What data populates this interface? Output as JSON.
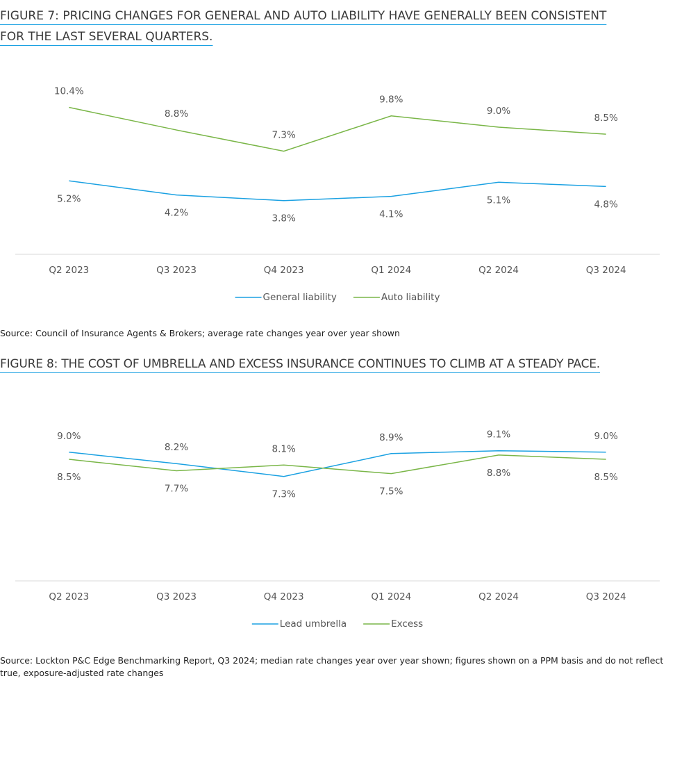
{
  "chart_data": [
    {
      "type": "line",
      "title": "FIGURE 7: PRICING CHANGES FOR GENERAL AND AUTO LIABILITY HAVE GENERALLY BEEN CONSISTENT FOR THE LAST SEVERAL QUARTERS.",
      "categories": [
        "Q2 2023",
        "Q3 2023",
        "Q4 2023",
        "Q1 2024",
        "Q2 2024",
        "Q3 2024"
      ],
      "series": [
        {
          "name": "General liability",
          "color": "#1ba1e2",
          "values": [
            5.2,
            4.2,
            3.8,
            4.1,
            5.1,
            4.8
          ],
          "value_labels": [
            "5.2%",
            "4.2%",
            "3.8%",
            "4.1%",
            "5.1%",
            "4.8%"
          ]
        },
        {
          "name": "Auto liability",
          "color": "#7ab648",
          "values": [
            10.4,
            8.8,
            7.3,
            9.8,
            9.0,
            8.5
          ],
          "value_labels": [
            "10.4%",
            "8.8%",
            "7.3%",
            "9.8%",
            "9.0%",
            "8.5%"
          ]
        }
      ],
      "ylim": [
        0,
        12
      ],
      "source": "Source: Council of Insurance Agents & Brokers; average rate changes year over year shown"
    },
    {
      "type": "line",
      "title": "FIGURE 8: THE COST OF UMBRELLA AND EXCESS INSURANCE CONTINUES TO CLIMB AT A STEADY PACE.",
      "categories": [
        "Q2 2023",
        "Q3 2023",
        "Q4 2023",
        "Q1 2024",
        "Q2 2024",
        "Q3 2024"
      ],
      "series": [
        {
          "name": "Lead umbrella",
          "color": "#1ba1e2",
          "values": [
            9.0,
            8.2,
            7.3,
            8.9,
            9.1,
            9.0
          ],
          "value_labels": [
            "9.0%",
            "8.2%",
            "7.3%",
            "8.9%",
            "9.1%",
            "9.0%"
          ]
        },
        {
          "name": "Excess",
          "color": "#7ab648",
          "values": [
            8.5,
            7.7,
            8.1,
            7.5,
            8.8,
            8.5
          ],
          "value_labels": [
            "8.5%",
            "7.7%",
            "8.1%",
            "7.5%",
            "8.8%",
            "8.5%"
          ]
        }
      ],
      "ylim": [
        0,
        12
      ],
      "source": "Source: Lockton P&C Edge Benchmarking Report, Q3 2024; median rate changes year over year shown; figures shown on a PPM basis and do not reflect true, exposure-adjusted rate changes"
    }
  ]
}
